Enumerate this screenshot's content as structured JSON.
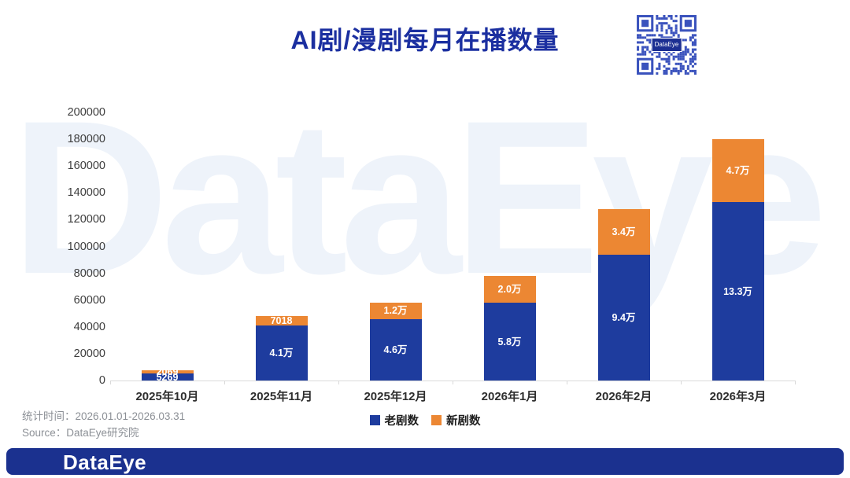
{
  "title": "AI剧/漫剧每月在播数量",
  "watermark": "DataEye",
  "qr": {
    "label": "DataEye"
  },
  "chart_data": {
    "type": "bar",
    "stacked": true,
    "title": "AI剧/漫剧每月在播数量",
    "categories": [
      "2025年10月",
      "2025年11月",
      "2025年12月",
      "2026年1月",
      "2026年2月",
      "2026年3月"
    ],
    "series": [
      {
        "name": "老剧数",
        "color": "#1e3c9e",
        "values": [
          5269,
          41000,
          46000,
          58000,
          94000,
          133000
        ],
        "labels": [
          "5269",
          "4.1万",
          "4.6万",
          "5.8万",
          "9.4万",
          "13.3万"
        ]
      },
      {
        "name": "新剧数",
        "color": "#ec8733",
        "values": [
          2069,
          7018,
          12000,
          20000,
          34000,
          47000
        ],
        "labels": [
          "2069",
          "7018",
          "1.2万",
          "2.0万",
          "3.4万",
          "4.7万"
        ]
      }
    ],
    "ylim": [
      0,
      200000
    ],
    "yticks": [
      "0",
      "20000",
      "40000",
      "60000",
      "80000",
      "100000",
      "120000",
      "140000",
      "160000",
      "180000",
      "200000"
    ],
    "legend_position": "bottom",
    "grid": false
  },
  "meta": {
    "stats_time": "统计时间：2026.01.01-2026.03.31",
    "source": "Source：DataEye研究院"
  },
  "footer": {
    "logo": "DataEye"
  },
  "colors": {
    "old_series": "#1e3c9e",
    "new_series": "#ec8733",
    "title": "#1b2fa0",
    "footer_bg": "#1b318f",
    "watermark": "#eef3fa",
    "qr_modules": "#3a52bd"
  }
}
